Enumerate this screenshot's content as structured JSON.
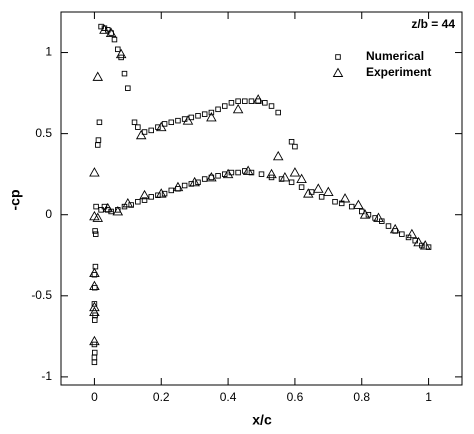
{
  "chart_data": {
    "type": "scatter",
    "annotation": "z/b = 44",
    "x_label": "x/c",
    "y_label": "-cp",
    "xlim": [
      -0.1,
      1.1
    ],
    "ylim": [
      -1.05,
      1.25
    ],
    "xticks": [
      0,
      0.2,
      0.4,
      0.6,
      0.8,
      1
    ],
    "yticks": [
      -1,
      -0.5,
      0,
      0.5,
      1
    ],
    "series": [
      {
        "name": "Numerical",
        "marker": "square",
        "color": "#000000",
        "x": [
          0.02,
          0.03,
          0.04,
          0.05,
          0.06,
          0.07,
          0.08,
          0.09,
          0.1,
          0.12,
          0.13,
          0.15,
          0.17,
          0.19,
          0.21,
          0.23,
          0.25,
          0.27,
          0.29,
          0.31,
          0.33,
          0.35,
          0.37,
          0.39,
          0.41,
          0.43,
          0.45,
          0.47,
          0.49,
          0.51,
          0.53,
          0.55,
          0.59,
          0.6,
          0.01,
          0.012,
          0.015,
          0.005,
          0.002,
          0.004,
          0.003,
          0.0,
          0.001,
          0.0,
          0.002,
          0.001,
          0.0,
          0.001,
          0.0,
          0.0,
          0.02,
          0.03,
          0.04,
          0.05,
          0.07,
          0.09,
          0.11,
          0.13,
          0.15,
          0.17,
          0.19,
          0.21,
          0.23,
          0.25,
          0.27,
          0.29,
          0.31,
          0.33,
          0.35,
          0.37,
          0.39,
          0.41,
          0.43,
          0.45,
          0.47,
          0.5,
          0.53,
          0.56,
          0.59,
          0.62,
          0.65,
          0.68,
          0.72,
          0.74,
          0.77,
          0.8,
          0.82,
          0.84,
          0.86,
          0.88,
          0.9,
          0.92,
          0.94,
          0.96,
          0.98,
          1.0
        ],
        "values": [
          1.16,
          1.15,
          1.14,
          1.12,
          1.08,
          1.02,
          0.97,
          0.87,
          0.78,
          0.57,
          0.54,
          0.51,
          0.52,
          0.54,
          0.56,
          0.57,
          0.58,
          0.59,
          0.6,
          0.61,
          0.62,
          0.63,
          0.65,
          0.67,
          0.69,
          0.7,
          0.7,
          0.7,
          0.7,
          0.69,
          0.67,
          0.63,
          0.45,
          0.42,
          0.43,
          0.46,
          0.57,
          0.05,
          -0.1,
          -0.12,
          -0.32,
          -0.37,
          -0.45,
          -0.55,
          -0.62,
          -0.65,
          -0.8,
          -0.85,
          -0.88,
          -0.91,
          0.03,
          0.05,
          0.03,
          0.02,
          0.03,
          0.05,
          0.06,
          0.08,
          0.09,
          0.11,
          0.12,
          0.13,
          0.15,
          0.16,
          0.18,
          0.19,
          0.2,
          0.22,
          0.23,
          0.24,
          0.25,
          0.26,
          0.26,
          0.27,
          0.26,
          0.25,
          0.23,
          0.22,
          0.2,
          0.17,
          0.14,
          0.11,
          0.08,
          0.07,
          0.05,
          0.02,
          0,
          -0.02,
          -0.04,
          -0.07,
          -0.1,
          -0.12,
          -0.14,
          -0.16,
          -0.19,
          -0.2
        ]
      },
      {
        "name": "Experiment",
        "marker": "triangle",
        "color": "#000000",
        "x": [
          0.01,
          0.0,
          0.0,
          0.0,
          0.0,
          0.0,
          0.0,
          0.0,
          0.03,
          0.05,
          0.08,
          0.14,
          0.2,
          0.28,
          0.35,
          0.43,
          0.49,
          0.01,
          0.04,
          0.07,
          0.1,
          0.15,
          0.2,
          0.25,
          0.3,
          0.35,
          0.4,
          0.46,
          0.53,
          0.55,
          0.57,
          0.6,
          0.62,
          0.64,
          0.67,
          0.7,
          0.75,
          0.79,
          0.81,
          0.85,
          0.9,
          0.95,
          0.97,
          0.99
        ],
        "values": [
          0.85,
          0.26,
          -0.01,
          -0.36,
          -0.44,
          -0.57,
          -0.6,
          -0.78,
          1.14,
          1.12,
          0.99,
          0.49,
          0.54,
          0.58,
          0.6,
          0.65,
          0.71,
          -0.02,
          0.04,
          0.02,
          0.07,
          0.12,
          0.13,
          0.17,
          0.2,
          0.23,
          0.25,
          0.27,
          0.25,
          0.36,
          0.23,
          0.26,
          0.22,
          0.13,
          0.16,
          0.14,
          0.1,
          0.06,
          0,
          -0.02,
          -0.09,
          -0.12,
          -0.17,
          -0.19
        ]
      }
    ]
  }
}
